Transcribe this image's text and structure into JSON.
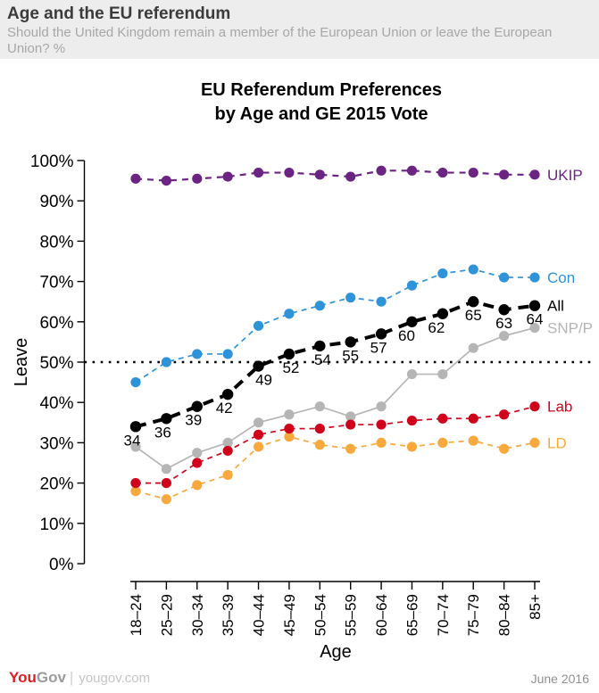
{
  "header": {
    "title": "Age and the EU referendum",
    "subtitle": "Should the United Kingdom remain a member of the European Union or leave the European Union? %"
  },
  "chart_data": {
    "type": "line",
    "title_lines": [
      "EU Referendum Preferences",
      "by Age and GE 2015 Vote"
    ],
    "xlabel": "Age",
    "ylabel": "Leave",
    "ylim": [
      0,
      100
    ],
    "ytick_step": 10,
    "ytick_suffix": "%",
    "grid": false,
    "reference_line": {
      "value": 50,
      "style": "dotted",
      "color": "#000000"
    },
    "legend_position": "right-of-line-ends",
    "categories": [
      "18–24",
      "25–29",
      "30–34",
      "35–39",
      "40–44",
      "45–49",
      "50–54",
      "55–59",
      "60–64",
      "65–69",
      "70–74",
      "75–79",
      "80–84",
      "85+"
    ],
    "series": [
      {
        "name": "UKIP",
        "color": "#6C2483",
        "line": "dashed-long",
        "values": [
          95.5,
          95,
          95.5,
          96,
          97,
          97,
          96.5,
          96,
          97.5,
          97.5,
          97,
          97,
          96.5,
          96.5
        ]
      },
      {
        "name": "Con",
        "color": "#2E93D9",
        "line": "dashed",
        "values": [
          45,
          50,
          52,
          52,
          59,
          62,
          64,
          66,
          65,
          69,
          72,
          73,
          71,
          71
        ]
      },
      {
        "name": "All",
        "color": "#000000",
        "line": "dashed-bold",
        "point_labels": true,
        "values": [
          34,
          36,
          39,
          42,
          49,
          52,
          54,
          55,
          57,
          60,
          62,
          65,
          63,
          64
        ]
      },
      {
        "name": "SNP/P",
        "color": "#B5B5B5",
        "line": "solid",
        "values": [
          29,
          23.5,
          27.5,
          30,
          35,
          37,
          39,
          36.5,
          39,
          47,
          47,
          53.5,
          56.5,
          58.5
        ]
      },
      {
        "name": "Lab",
        "color": "#D0021B",
        "line": "dashed",
        "values": [
          20,
          20,
          25,
          28,
          32,
          33.5,
          33.5,
          34.5,
          34.5,
          35.5,
          36,
          36,
          37,
          39
        ]
      },
      {
        "name": "LD",
        "color": "#F8A93D",
        "line": "dashed",
        "values": [
          18,
          16,
          19.5,
          22,
          29,
          31.5,
          29.5,
          28.5,
          30,
          29,
          30,
          30.5,
          28.5,
          30
        ]
      }
    ]
  },
  "footer": {
    "logo_you": "You",
    "logo_gov": "Gov",
    "separator": "|",
    "domain": "yougov.com",
    "date": "June 2016"
  }
}
